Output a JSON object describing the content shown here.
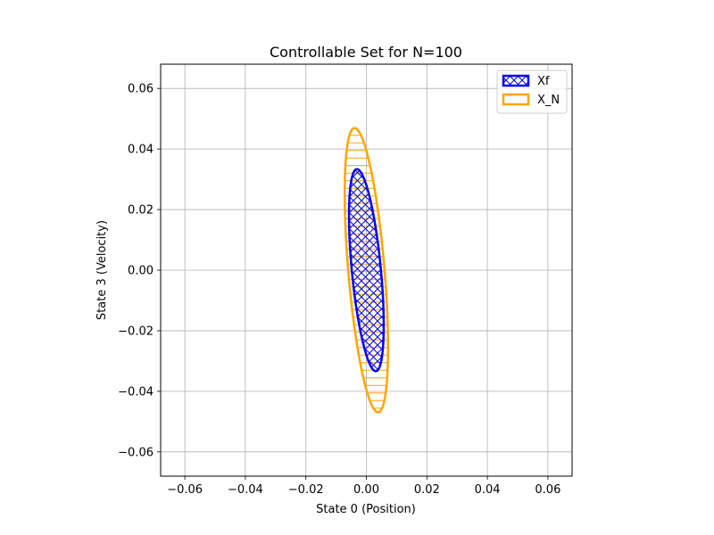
{
  "chart_data": {
    "type": "area",
    "title": "Controllable Set for N=100",
    "xlabel": "State 0 (Position)",
    "ylabel": "State 3 (Velocity)",
    "xlim": [
      -0.068,
      0.068
    ],
    "ylim": [
      -0.068,
      0.068
    ],
    "xticks": [
      -0.06,
      -0.04,
      -0.02,
      0.0,
      0.02,
      0.04,
      0.06
    ],
    "yticks": [
      -0.06,
      -0.04,
      -0.02,
      0.0,
      0.02,
      0.04,
      0.06
    ],
    "xtick_labels": [
      "−0.06",
      "−0.04",
      "−0.02",
      "0.00",
      "0.02",
      "0.04",
      "0.06"
    ],
    "ytick_labels": [
      "−0.06",
      "−0.04",
      "−0.02",
      "0.00",
      "0.02",
      "0.04",
      "0.06"
    ],
    "grid": true,
    "legend_position": "top-right",
    "series": [
      {
        "name": "X_N",
        "shape": "ellipse",
        "center": [
          0.0,
          0.0
        ],
        "semi_axes": [
          0.0471,
          0.006
        ],
        "extreme_points": [
          [
            -0.004,
            0.0476
          ],
          [
            0.0046,
            -0.0482
          ]
        ],
        "color": "#ffa500",
        "hatch": "-"
      },
      {
        "name": "Xf",
        "shape": "ellipse",
        "center": [
          0.0,
          0.0
        ],
        "semi_axes": [
          0.0335,
          0.0048
        ],
        "extreme_points": [
          [
            -0.0032,
            0.0336
          ],
          [
            0.0032,
            -0.034
          ]
        ],
        "color": "#0000ff",
        "hatch": "x"
      }
    ]
  }
}
